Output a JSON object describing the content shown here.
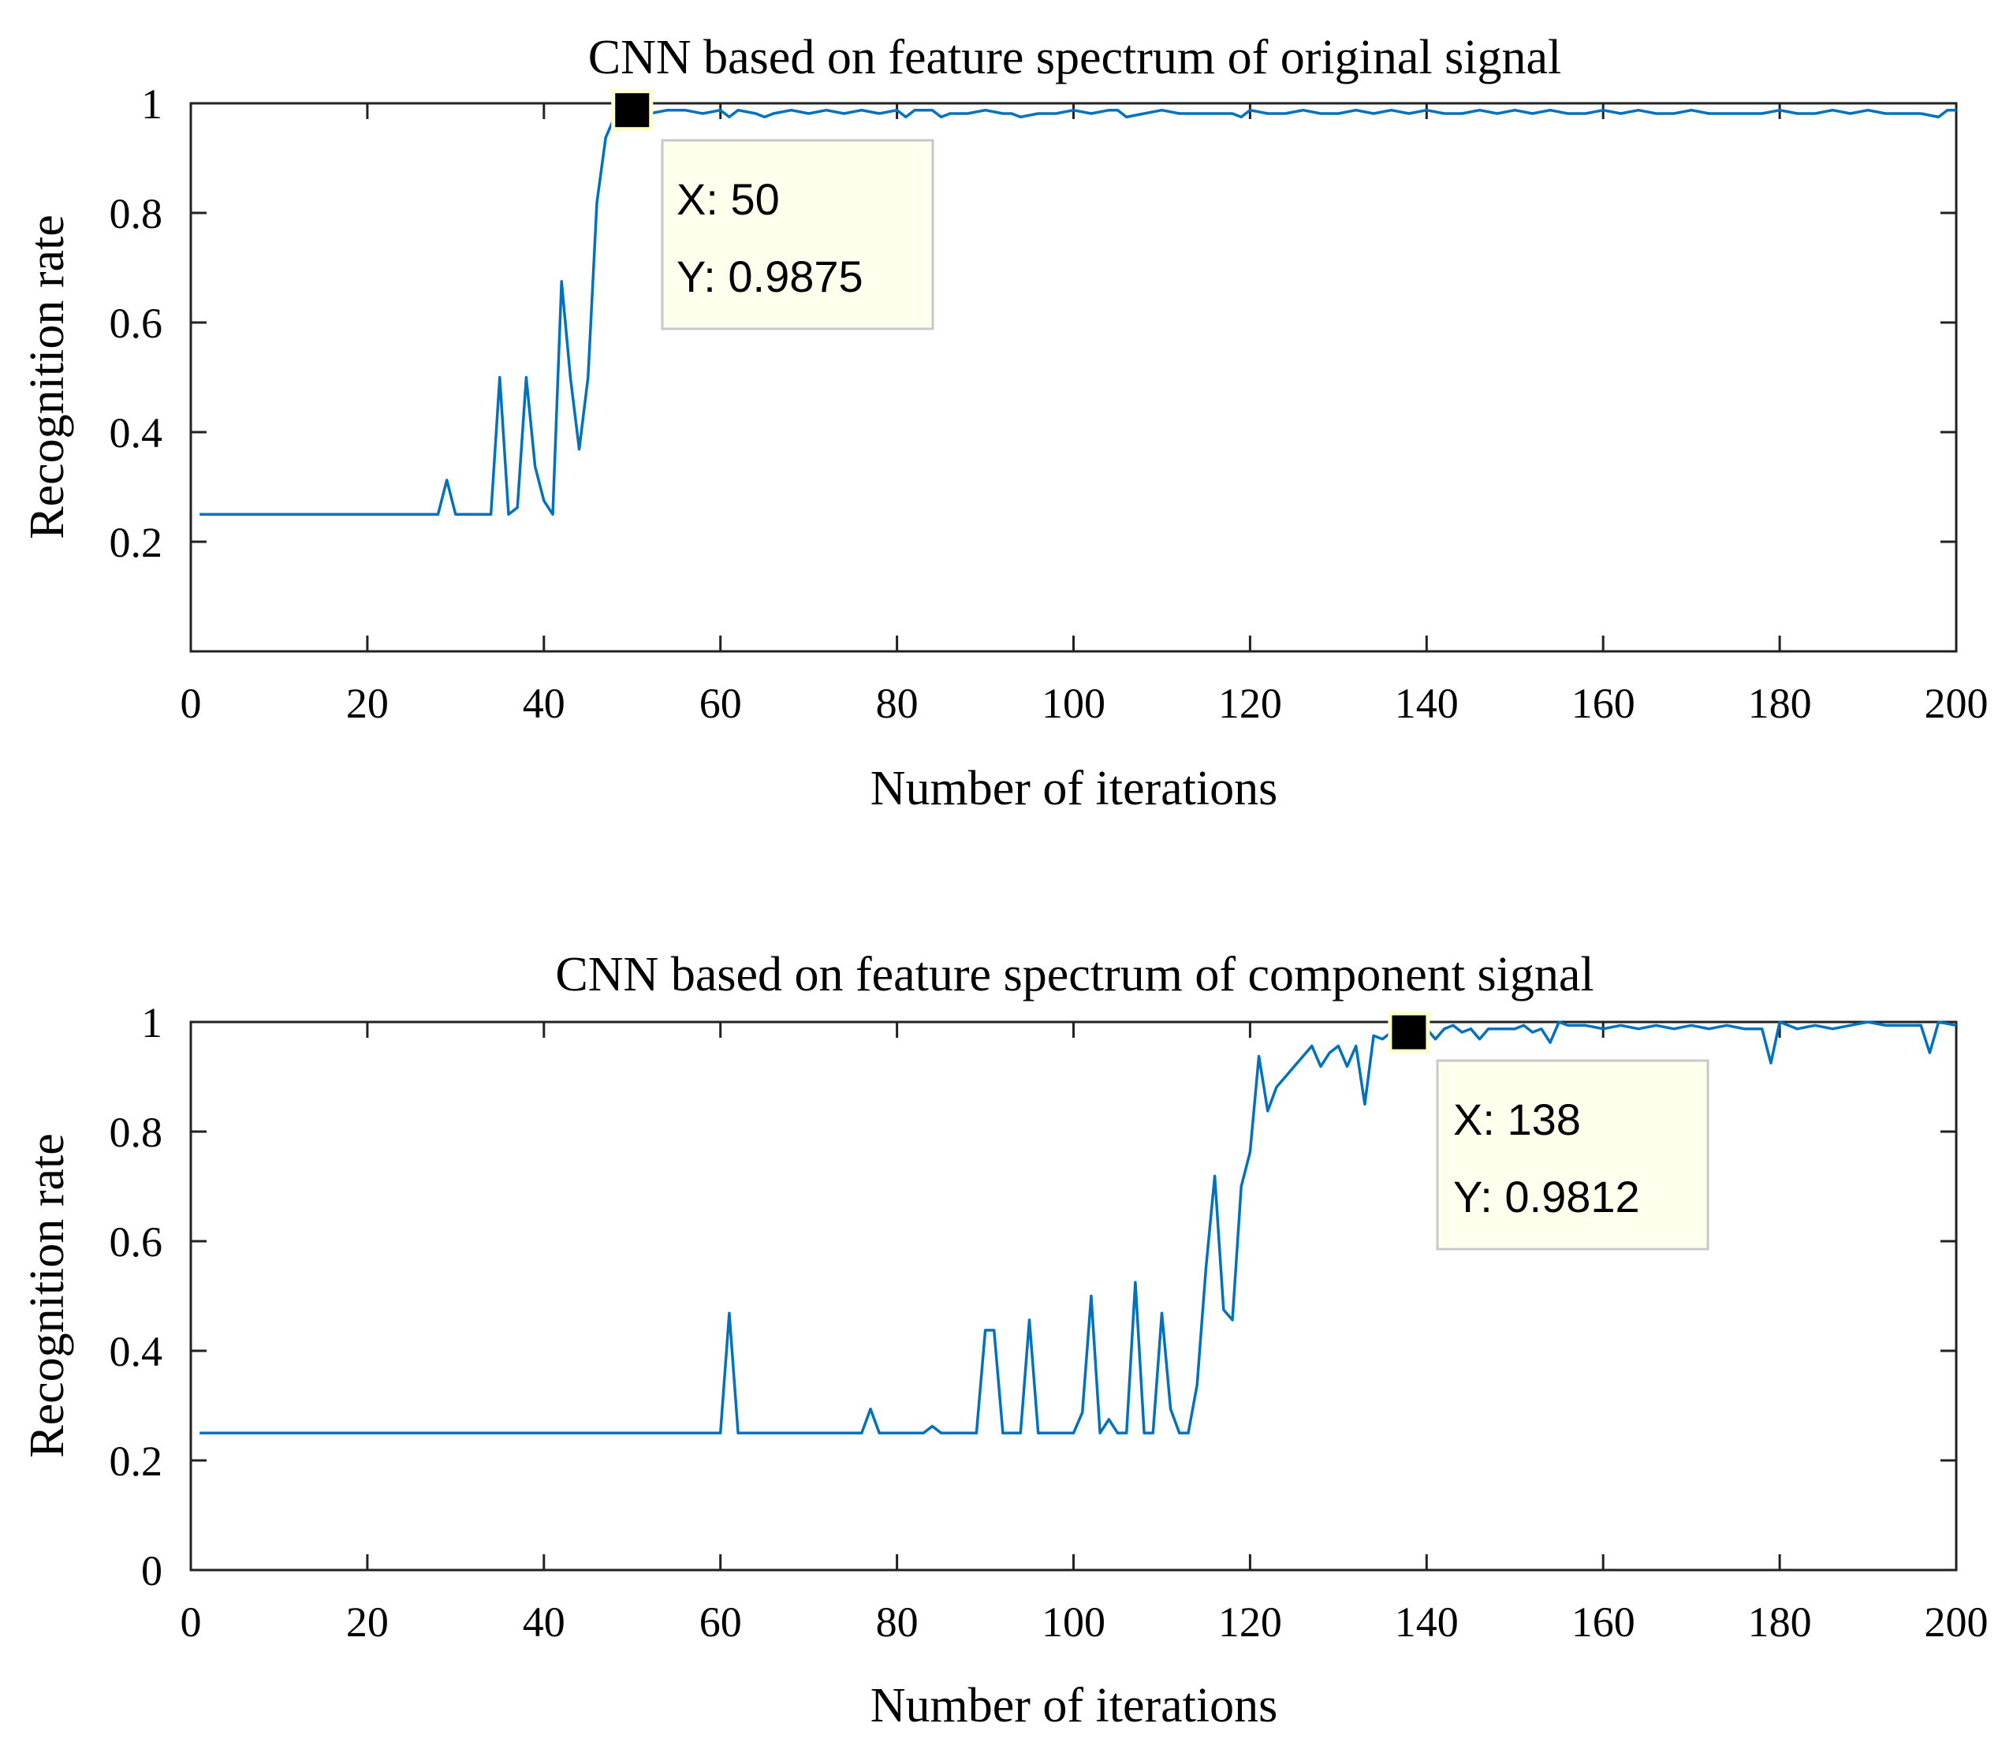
{
  "chart_data": [
    {
      "type": "line",
      "title": "CNN based on feature spectrum of original signal",
      "xlabel": "Number of iterations",
      "ylabel": "Recognition rate",
      "xlim": [
        0,
        200
      ],
      "ylim": [
        0,
        1
      ],
      "xticks": [
        "0",
        "20",
        "40",
        "60",
        "80",
        "100",
        "120",
        "140",
        "160",
        "180",
        "200"
      ],
      "yticks": [
        "0.2",
        "0.4",
        "0.6",
        "0.8",
        "1"
      ],
      "series": [
        {
          "name": "Recognition rate",
          "color": "#0072bd",
          "x": [
            1,
            28,
            29,
            30,
            33,
            34,
            35,
            36,
            37,
            38,
            39,
            40,
            41,
            42,
            43,
            44,
            45,
            46,
            47,
            48,
            49,
            50,
            52,
            54,
            56,
            58,
            60,
            61,
            62,
            64,
            65,
            66,
            68,
            70,
            72,
            74,
            76,
            78,
            80,
            81,
            82,
            84,
            85,
            86,
            88,
            90,
            92,
            93,
            94,
            96,
            98,
            100,
            102,
            104,
            105,
            106,
            108,
            110,
            112,
            114,
            116,
            118,
            119,
            120,
            122,
            124,
            126,
            128,
            130,
            132,
            134,
            136,
            138,
            140,
            142,
            144,
            146,
            148,
            150,
            152,
            154,
            156,
            158,
            160,
            162,
            164,
            166,
            168,
            170,
            172,
            174,
            176,
            178,
            180,
            182,
            184,
            186,
            188,
            190,
            192,
            194,
            196,
            198,
            199,
            200
          ],
          "y": [
            0.25,
            0.25,
            0.3125,
            0.25,
            0.25,
            0.25,
            0.5,
            0.25,
            0.2625,
            0.5,
            0.3375,
            0.275,
            0.25,
            0.675,
            0.5,
            0.3688,
            0.5,
            0.8188,
            0.9375,
            0.975,
            0.9875,
            0.9875,
            0.9813,
            0.9875,
            0.9875,
            0.9813,
            0.9875,
            0.975,
            0.9875,
            0.9813,
            0.975,
            0.9813,
            0.9875,
            0.9813,
            0.9875,
            0.9813,
            0.9875,
            0.9813,
            0.9875,
            0.975,
            0.9875,
            0.9875,
            0.975,
            0.9813,
            0.9813,
            0.9875,
            0.9813,
            0.9813,
            0.975,
            0.9813,
            0.9813,
            0.9875,
            0.9813,
            0.9875,
            0.9875,
            0.975,
            0.9813,
            0.9875,
            0.9813,
            0.9813,
            0.9813,
            0.9813,
            0.975,
            0.9875,
            0.9813,
            0.9813,
            0.9875,
            0.9813,
            0.9813,
            0.9875,
            0.9813,
            0.9875,
            0.9813,
            0.9875,
            0.9813,
            0.9813,
            0.9875,
            0.9813,
            0.9875,
            0.9813,
            0.9875,
            0.9813,
            0.9813,
            0.9875,
            0.9813,
            0.9875,
            0.9813,
            0.9813,
            0.9875,
            0.9813,
            0.9813,
            0.9813,
            0.9813,
            0.9875,
            0.9813,
            0.9813,
            0.9875,
            0.9813,
            0.9875,
            0.9813,
            0.9813,
            0.9813,
            0.975,
            0.9875,
            0.9875
          ]
        }
      ],
      "datatip": {
        "x": 50,
        "y": 0.9875,
        "x_text": "X: 50",
        "y_text": "Y: 0.9875"
      }
    },
    {
      "type": "line",
      "title": "CNN based on feature spectrum of component signal",
      "xlabel": "Number of iterations",
      "ylabel": "Recognition rate",
      "xlim": [
        0,
        200
      ],
      "ylim": [
        0,
        1
      ],
      "xticks": [
        "0",
        "20",
        "40",
        "60",
        "80",
        "100",
        "120",
        "140",
        "160",
        "180",
        "200"
      ],
      "yticks": [
        "0",
        "0.2",
        "0.4",
        "0.6",
        "0.8",
        "1"
      ],
      "series": [
        {
          "name": "Recognition rate",
          "color": "#0072bd",
          "x": [
            1,
            60,
            61,
            62,
            76,
            77,
            78,
            83,
            84,
            85,
            89,
            90,
            91,
            92,
            93,
            94,
            95,
            96,
            100,
            101,
            102,
            103,
            104,
            105,
            106,
            107,
            108,
            109,
            110,
            111,
            112,
            113,
            114,
            115,
            116,
            117,
            118,
            119,
            120,
            121,
            122,
            123,
            124,
            125,
            126,
            127,
            128,
            129,
            130,
            131,
            132,
            133,
            134,
            135,
            136,
            137,
            138,
            139,
            140,
            141,
            142,
            143,
            144,
            145,
            146,
            147,
            148,
            149,
            150,
            151,
            152,
            153,
            154,
            155,
            156,
            158,
            160,
            162,
            164,
            166,
            168,
            170,
            172,
            174,
            176,
            178,
            179,
            180,
            182,
            184,
            186,
            188,
            190,
            192,
            194,
            196,
            197,
            198,
            200
          ],
          "y": [
            0.25,
            0.25,
            0.4688,
            0.25,
            0.25,
            0.2938,
            0.25,
            0.25,
            0.2625,
            0.25,
            0.25,
            0.4375,
            0.4375,
            0.25,
            0.25,
            0.25,
            0.4563,
            0.25,
            0.25,
            0.2875,
            0.5,
            0.25,
            0.275,
            0.25,
            0.25,
            0.525,
            0.25,
            0.25,
            0.4688,
            0.2938,
            0.25,
            0.25,
            0.3375,
            0.55,
            0.7188,
            0.475,
            0.4563,
            0.7,
            0.7625,
            0.9375,
            0.8375,
            0.8813,
            0.9,
            0.9188,
            0.9375,
            0.9563,
            0.9188,
            0.9438,
            0.9563,
            0.9188,
            0.9563,
            0.85,
            0.975,
            0.9688,
            0.9813,
            0.975,
            0.9812,
            0.975,
            0.9875,
            0.9688,
            0.9875,
            0.9938,
            0.9813,
            0.9875,
            0.9688,
            0.9875,
            0.9875,
            0.9875,
            0.9875,
            0.9938,
            0.9813,
            0.9875,
            0.9625,
            1.0,
            0.9938,
            0.9938,
            0.9875,
            0.9938,
            0.9875,
            0.9938,
            0.9875,
            0.9938,
            0.9875,
            0.9938,
            0.9875,
            0.9875,
            0.925,
            1.0,
            0.9875,
            0.9938,
            0.9875,
            0.9938,
            1.0,
            0.9938,
            0.9938,
            0.9938,
            0.9438,
            1.0,
            0.9938
          ]
        }
      ],
      "datatip": {
        "x": 138,
        "y": 0.9812,
        "x_text": "X: 138",
        "y_text": "Y: 0.9812"
      }
    }
  ]
}
